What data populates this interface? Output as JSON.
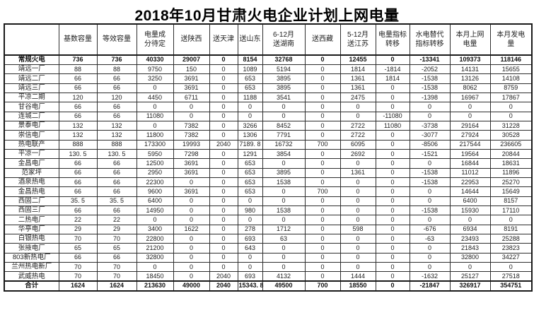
{
  "title": "2018年10月甘肃火电企业计划上网电量",
  "table": {
    "columns": [
      "",
      "基数容量",
      "等效容量",
      "电量成\n分待定",
      "送陕西",
      "送天津",
      "送山东",
      "6-12月\n送湖南",
      "送西藏",
      "5-12月\n送江苏",
      "电量指标\n转移",
      "水电替代\n指标转移",
      "本月上网\n电量",
      "本月发电\n量"
    ],
    "rows": [
      {
        "label": "常规火电",
        "bold": true,
        "total": false,
        "values": [
          "736",
          "736",
          "40330",
          "29007",
          "0",
          "8154",
          "32768",
          "0",
          "12455",
          "0",
          "-13341",
          "109373",
          "118146"
        ]
      },
      {
        "label": "靖远一厂",
        "bold": false,
        "total": false,
        "values": [
          "88",
          "88",
          "9750",
          "150",
          "0",
          "1089",
          "5194",
          "0",
          "1814",
          "-1814",
          "-2052",
          "14131",
          "15655"
        ]
      },
      {
        "label": "靖远二厂",
        "bold": false,
        "total": false,
        "values": [
          "66",
          "66",
          "3250",
          "3691",
          "0",
          "653",
          "3895",
          "0",
          "1361",
          "1814",
          "-1538",
          "13126",
          "14108"
        ]
      },
      {
        "label": "靖远三厂",
        "bold": false,
        "total": false,
        "values": [
          "66",
          "66",
          "0",
          "3691",
          "0",
          "653",
          "3895",
          "0",
          "1361",
          "0",
          "-1538",
          "8062",
          "8759"
        ]
      },
      {
        "label": "平凉二期",
        "bold": false,
        "total": false,
        "values": [
          "120",
          "120",
          "4450",
          "6711",
          "0",
          "1188",
          "3541",
          "0",
          "2475",
          "0",
          "-1398",
          "16967",
          "17867"
        ]
      },
      {
        "label": "甘谷电厂",
        "bold": false,
        "total": false,
        "values": [
          "66",
          "66",
          "0",
          "0",
          "0",
          "0",
          "0",
          "0",
          "0",
          "0",
          "0",
          "0",
          "0"
        ]
      },
      {
        "label": "连城二厂",
        "bold": false,
        "total": false,
        "values": [
          "66",
          "66",
          "11080",
          "0",
          "0",
          "0",
          "0",
          "0",
          "0",
          "-11080",
          "0",
          "0",
          "0"
        ]
      },
      {
        "label": "景泰电厂",
        "bold": false,
        "total": false,
        "values": [
          "132",
          "132",
          "0",
          "7382",
          "0",
          "3266",
          "8452",
          "0",
          "2722",
          "11080",
          "-3738",
          "29164",
          "31228"
        ]
      },
      {
        "label": "崇信电厂",
        "bold": false,
        "total": false,
        "values": [
          "132",
          "132",
          "11800",
          "7382",
          "0",
          "1306",
          "7791",
          "0",
          "2722",
          "0",
          "-3077",
          "27924",
          "30528"
        ]
      },
      {
        "label": "热电联产",
        "bold": false,
        "total": false,
        "values": [
          "888",
          "888",
          "173300",
          "19993",
          "2040",
          "7189. 8",
          "16732",
          "700",
          "6095",
          "0",
          "-8506",
          "217544",
          "236605"
        ]
      },
      {
        "label": "平凉一厂",
        "bold": false,
        "total": false,
        "values": [
          "130. 5",
          "130. 5",
          "5950",
          "7298",
          "0",
          "1291",
          "3854",
          "0",
          "2692",
          "0",
          "-1521",
          "19564",
          "20844"
        ]
      },
      {
        "label": "金昌电厂",
        "bold": false,
        "total": false,
        "values": [
          "66",
          "66",
          "12500",
          "3691",
          "0",
          "653",
          "0",
          "0",
          "0",
          "0",
          "0",
          "16844",
          "18631"
        ]
      },
      {
        "label": "范家坪",
        "bold": false,
        "total": false,
        "values": [
          "66",
          "66",
          "2950",
          "3691",
          "0",
          "653",
          "3895",
          "0",
          "1361",
          "0",
          "-1538",
          "11012",
          "11896"
        ]
      },
      {
        "label": "酒泉热电",
        "bold": false,
        "total": false,
        "values": [
          "66",
          "66",
          "22300",
          "0",
          "0",
          "653",
          "1538",
          "0",
          "0",
          "0",
          "-1538",
          "22953",
          "25270"
        ]
      },
      {
        "label": "金昌热电",
        "bold": false,
        "total": false,
        "values": [
          "66",
          "66",
          "9600",
          "3691",
          "0",
          "653",
          "0",
          "700",
          "0",
          "0",
          "0",
          "14644",
          "15649"
        ]
      },
      {
        "label": "西固二厂",
        "bold": false,
        "total": false,
        "values": [
          "35. 5",
          "35. 5",
          "6400",
          "0",
          "0",
          "0",
          "0",
          "0",
          "0",
          "0",
          "0",
          "6400",
          "8157"
        ]
      },
      {
        "label": "西固三厂",
        "bold": false,
        "total": false,
        "values": [
          "66",
          "66",
          "14950",
          "0",
          "0",
          "980",
          "1538",
          "0",
          "0",
          "0",
          "-1538",
          "15930",
          "17110"
        ]
      },
      {
        "label": "二热电厂",
        "bold": false,
        "total": false,
        "values": [
          "22",
          "22",
          "0",
          "0",
          "0",
          "0",
          "0",
          "0",
          "0",
          "0",
          "0",
          "0",
          "0"
        ]
      },
      {
        "label": "华亭电厂",
        "bold": false,
        "total": false,
        "values": [
          "29",
          "29",
          "3400",
          "1622",
          "0",
          "278",
          "1712",
          "0",
          "598",
          "0",
          "-676",
          "6934",
          "8191"
        ]
      },
      {
        "label": "白银热电",
        "bold": false,
        "total": false,
        "values": [
          "70",
          "70",
          "22800",
          "0",
          "0",
          "693",
          "63",
          "0",
          "0",
          "0",
          "-63",
          "23493",
          "25288"
        ]
      },
      {
        "label": "张掖电厂",
        "bold": false,
        "total": false,
        "values": [
          "65",
          "65",
          "21200",
          "0",
          "0",
          "643",
          "0",
          "0",
          "0",
          "0",
          "0",
          "21843",
          "23823"
        ]
      },
      {
        "label": "803新热电厂",
        "bold": false,
        "total": false,
        "values": [
          "66",
          "66",
          "32800",
          "0",
          "0",
          "0",
          "0",
          "0",
          "0",
          "0",
          "0",
          "32800",
          "34227"
        ]
      },
      {
        "label": "兰州热电新厂",
        "bold": false,
        "total": false,
        "values": [
          "70",
          "70",
          "0",
          "0",
          "0",
          "0",
          "0",
          "0",
          "0",
          "0",
          "0",
          "0",
          "0"
        ]
      },
      {
        "label": "武威热电",
        "bold": false,
        "total": false,
        "values": [
          "70",
          "70",
          "18450",
          "0",
          "2040",
          "693",
          "4132",
          "0",
          "1444",
          "0",
          "-1632",
          "25127",
          "27518"
        ]
      },
      {
        "label": "合计",
        "bold": true,
        "total": true,
        "values": [
          "1624",
          "1624",
          "213630",
          "49000",
          "2040",
          "15343. 8",
          "49500",
          "700",
          "18550",
          "0",
          "-21847",
          "326917",
          "354751"
        ]
      }
    ]
  }
}
